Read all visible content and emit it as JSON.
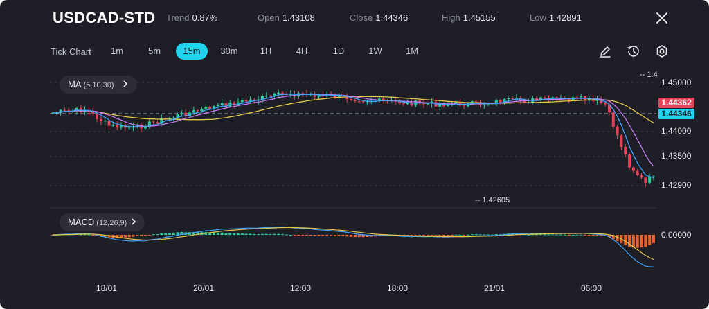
{
  "header": {
    "symbol": "USDCAD-STD",
    "trend_label": "Trend",
    "trend_value": "0.87%",
    "open_label": "Open",
    "open_value": "1.43108",
    "close_label": "Close",
    "close_value": "1.44346",
    "high_label": "High",
    "high_value": "1.45155",
    "low_label": "Low",
    "low_value": "1.42891",
    "close_icon": "close-icon"
  },
  "timeframes": {
    "tick_chart": "Tick Chart",
    "items": [
      "1m",
      "5m",
      "15m",
      "30m",
      "1H",
      "4H",
      "1D",
      "1W",
      "1M"
    ],
    "active": "15m"
  },
  "tools": [
    "pencil-icon",
    "clock-icon",
    "settings-icon"
  ],
  "indicators": {
    "ma_name": "MA",
    "ma_params": "(5,10,30)",
    "macd_name": "MACD",
    "macd_params": "(12,26,9)"
  },
  "price_axis": [
    "1.45000",
    "1.44000",
    "1.43500",
    "1.42900"
  ],
  "price_tags": {
    "high_tag": "1.44362",
    "current_tag": "1.44346"
  },
  "macd_axis": [
    "0.00000"
  ],
  "annotations": {
    "max_label": "1.4",
    "min_label": "1.42605"
  },
  "time_axis": [
    "18/01",
    "20/01",
    "12:00",
    "18:00",
    "21/01",
    "06:00"
  ],
  "colors": {
    "background": "#1e1e26",
    "accent": "#22d3ee",
    "up": "#2ecc9a",
    "down": "#e5435a",
    "ma_fast": "#3fa3ff",
    "ma_mid": "#c27cf0",
    "ma_slow": "#e6c84a",
    "macd_neg": "#e8642c"
  }
}
